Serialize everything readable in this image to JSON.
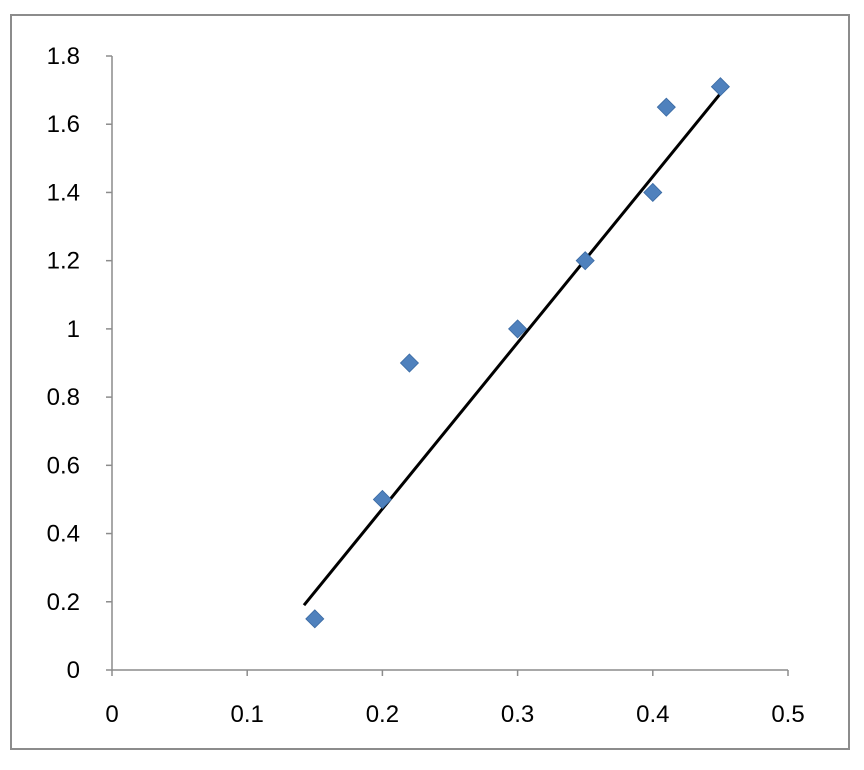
{
  "chart_data": {
    "type": "scatter",
    "title": "",
    "xlabel": "",
    "ylabel": "",
    "xlim": [
      0,
      0.5
    ],
    "ylim": [
      0,
      1.8
    ],
    "x_ticks": [
      "0",
      "0.1",
      "0.2",
      "0.3",
      "0.4",
      "0.5"
    ],
    "y_ticks": [
      "0",
      "0.2",
      "0.4",
      "0.6",
      "0.8",
      "1",
      "1.2",
      "1.4",
      "1.6",
      "1.8"
    ],
    "grid": false,
    "legend": "none",
    "series": [
      {
        "marker": "diamond",
        "color": "#4F81BD",
        "points": [
          {
            "x": 0.15,
            "y": 0.15
          },
          {
            "x": 0.2,
            "y": 0.5
          },
          {
            "x": 0.22,
            "y": 0.9
          },
          {
            "x": 0.3,
            "y": 1.0
          },
          {
            "x": 0.35,
            "y": 1.2
          },
          {
            "x": 0.4,
            "y": 1.4
          },
          {
            "x": 0.41,
            "y": 1.65
          },
          {
            "x": 0.45,
            "y": 1.71
          }
        ]
      }
    ],
    "trendline": {
      "type": "linear",
      "color": "#000000",
      "from": {
        "x": 0.142,
        "y": 0.19
      },
      "to": {
        "x": 0.45,
        "y": 1.69
      }
    },
    "axis_color": "#8C8C8C"
  }
}
